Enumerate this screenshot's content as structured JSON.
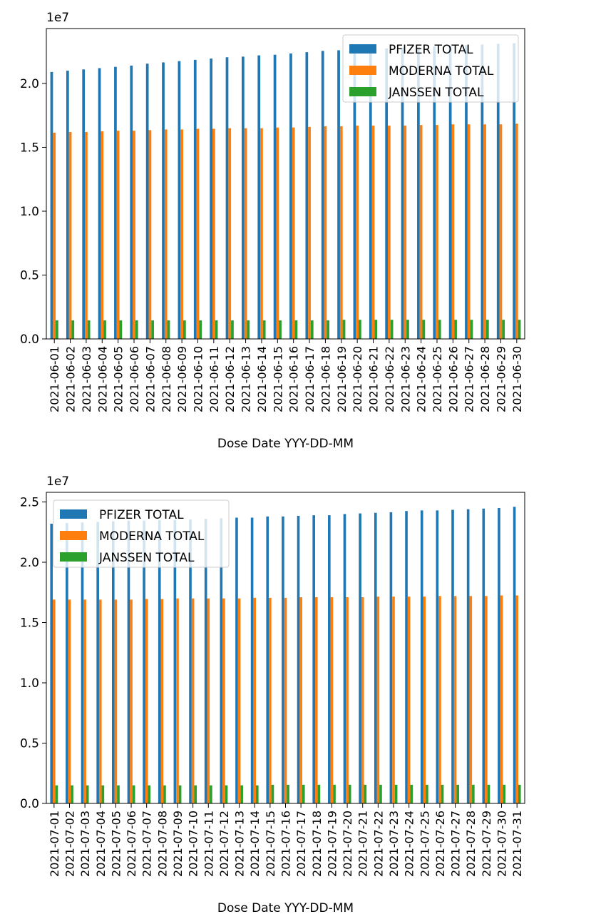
{
  "chart_data": [
    {
      "type": "bar",
      "xlabel": "Dose Date YYY-DD-MM",
      "ylabel": "",
      "scale_label": "1e7",
      "ylim": [
        0,
        24300000
      ],
      "yticks": [
        0,
        5000000,
        10000000,
        15000000,
        20000000
      ],
      "ytick_labels": [
        "0.0",
        "0.5",
        "1.0",
        "1.5",
        "2.0"
      ],
      "legend_position": "upper right",
      "grid": false,
      "categories": [
        "2021-06-01",
        "2021-06-02",
        "2021-06-03",
        "2021-06-04",
        "2021-06-05",
        "2021-06-06",
        "2021-06-07",
        "2021-06-08",
        "2021-06-09",
        "2021-06-10",
        "2021-06-11",
        "2021-06-12",
        "2021-06-13",
        "2021-06-14",
        "2021-06-15",
        "2021-06-16",
        "2021-06-17",
        "2021-06-18",
        "2021-06-19",
        "2021-06-20",
        "2021-06-21",
        "2021-06-22",
        "2021-06-23",
        "2021-06-24",
        "2021-06-25",
        "2021-06-26",
        "2021-06-27",
        "2021-06-28",
        "2021-06-29",
        "2021-06-30"
      ],
      "series": [
        {
          "name": "PFIZER TOTAL",
          "color": "#1f77b4",
          "values": [
            20900000,
            21000000,
            21100000,
            21200000,
            21300000,
            21400000,
            21550000,
            21650000,
            21750000,
            21850000,
            21950000,
            22050000,
            22100000,
            22200000,
            22250000,
            22350000,
            22450000,
            22550000,
            22600000,
            22650000,
            22700000,
            22750000,
            22800000,
            22850000,
            22900000,
            22950000,
            23000000,
            23050000,
            23100000,
            23150000
          ]
        },
        {
          "name": "MODERNA TOTAL",
          "color": "#ff7f0e",
          "values": [
            16150000,
            16200000,
            16200000,
            16250000,
            16300000,
            16300000,
            16350000,
            16400000,
            16400000,
            16450000,
            16450000,
            16500000,
            16500000,
            16500000,
            16550000,
            16550000,
            16600000,
            16650000,
            16650000,
            16700000,
            16700000,
            16700000,
            16700000,
            16750000,
            16750000,
            16800000,
            16800000,
            16800000,
            16800000,
            16850000
          ]
        },
        {
          "name": "JANSSEN TOTAL",
          "color": "#2ca02c",
          "values": [
            1450000,
            1450000,
            1450000,
            1450000,
            1450000,
            1450000,
            1450000,
            1450000,
            1450000,
            1450000,
            1450000,
            1450000,
            1450000,
            1450000,
            1450000,
            1450000,
            1450000,
            1450000,
            1500000,
            1500000,
            1500000,
            1500000,
            1500000,
            1500000,
            1500000,
            1500000,
            1500000,
            1500000,
            1500000,
            1500000
          ]
        }
      ]
    },
    {
      "type": "bar",
      "xlabel": "Dose Date YYY-DD-MM",
      "ylabel": "",
      "scale_label": "1e7",
      "ylim": [
        0,
        25800000
      ],
      "yticks": [
        0,
        5000000,
        10000000,
        15000000,
        20000000,
        25000000
      ],
      "ytick_labels": [
        "0.0",
        "0.5",
        "1.0",
        "1.5",
        "2.0",
        "2.5"
      ],
      "legend_position": "upper left",
      "grid": false,
      "categories": [
        "2021-07-01",
        "2021-07-02",
        "2021-07-03",
        "2021-07-04",
        "2021-07-05",
        "2021-07-06",
        "2021-07-07",
        "2021-07-08",
        "2021-07-09",
        "2021-07-10",
        "2021-07-11",
        "2021-07-12",
        "2021-07-13",
        "2021-07-14",
        "2021-07-15",
        "2021-07-16",
        "2021-07-17",
        "2021-07-18",
        "2021-07-19",
        "2021-07-20",
        "2021-07-21",
        "2021-07-22",
        "2021-07-23",
        "2021-07-24",
        "2021-07-25",
        "2021-07-26",
        "2021-07-27",
        "2021-07-28",
        "2021-07-29",
        "2021-07-30",
        "2021-07-31"
      ],
      "series": [
        {
          "name": "PFIZER TOTAL",
          "color": "#1f77b4",
          "values": [
            23200000,
            23250000,
            23300000,
            23350000,
            23400000,
            23450000,
            23450000,
            23500000,
            23500000,
            23550000,
            23600000,
            23650000,
            23700000,
            23700000,
            23800000,
            23800000,
            23850000,
            23900000,
            23900000,
            24000000,
            24050000,
            24100000,
            24150000,
            24250000,
            24300000,
            24300000,
            24350000,
            24400000,
            24450000,
            24500000,
            24600000
          ]
        },
        {
          "name": "MODERNA TOTAL",
          "color": "#ff7f0e",
          "values": [
            16900000,
            16900000,
            16900000,
            16900000,
            16900000,
            16900000,
            16950000,
            16950000,
            17000000,
            17000000,
            17000000,
            17000000,
            17000000,
            17050000,
            17050000,
            17050000,
            17100000,
            17100000,
            17100000,
            17100000,
            17100000,
            17150000,
            17150000,
            17150000,
            17150000,
            17200000,
            17200000,
            17200000,
            17200000,
            17250000,
            17250000
          ]
        },
        {
          "name": "JANSSEN TOTAL",
          "color": "#2ca02c",
          "values": [
            1500000,
            1500000,
            1500000,
            1500000,
            1500000,
            1500000,
            1500000,
            1500000,
            1500000,
            1500000,
            1500000,
            1500000,
            1500000,
            1500000,
            1550000,
            1550000,
            1550000,
            1550000,
            1550000,
            1550000,
            1550000,
            1550000,
            1550000,
            1550000,
            1550000,
            1550000,
            1550000,
            1550000,
            1550000,
            1550000,
            1550000
          ]
        }
      ]
    }
  ]
}
